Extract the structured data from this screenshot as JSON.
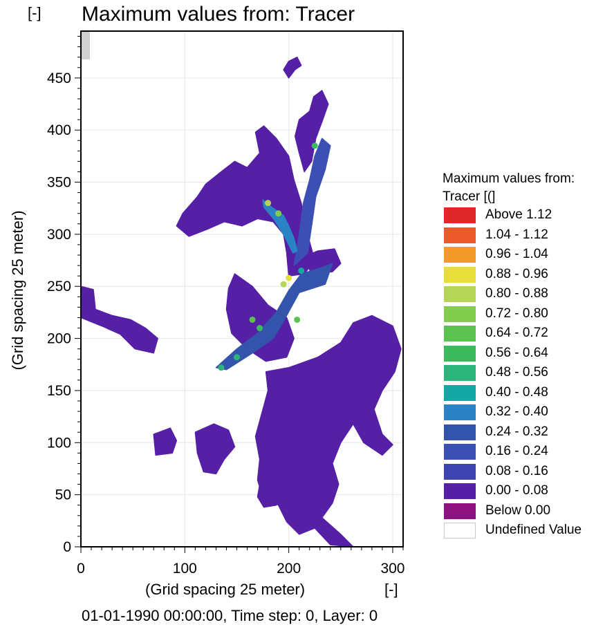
{
  "chart_data": {
    "type": "heatmap",
    "title": "Maximum values from: Tracer",
    "top_unit": "[-]",
    "xlabel": "(Grid spacing 25 meter)",
    "x_unit": "[-]",
    "ylabel": "(Grid spacing 25 meter)",
    "footer": "01-01-1990 00:00:00, Time step: 0, Layer: 0",
    "xlim": [
      0,
      310
    ],
    "ylim": [
      0,
      495
    ],
    "x_ticks": [
      0,
      100,
      200,
      300
    ],
    "y_ticks": [
      0,
      50,
      100,
      150,
      200,
      250,
      300,
      350,
      400,
      450
    ],
    "grid": true,
    "legend_position": "right",
    "legend": {
      "title": "Maximum values from: Tracer [(]",
      "entries": [
        {
          "label": "Above 1.12",
          "color": "#e0272a"
        },
        {
          "label": "1.04 - 1.12",
          "color": "#ec5a2b"
        },
        {
          "label": "0.96 - 1.04",
          "color": "#f29a2a"
        },
        {
          "label": "0.88 - 0.96",
          "color": "#e8de3a"
        },
        {
          "label": "0.80 - 0.88",
          "color": "#b4d557"
        },
        {
          "label": "0.72 - 0.80",
          "color": "#82cc4e"
        },
        {
          "label": "0.64 - 0.72",
          "color": "#5bc24f"
        },
        {
          "label": "0.56 - 0.64",
          "color": "#3dba5d"
        },
        {
          "label": "0.48 - 0.56",
          "color": "#2cb47a"
        },
        {
          "label": "0.40 - 0.48",
          "color": "#14a8a5"
        },
        {
          "label": "0.32 - 0.40",
          "color": "#2b82c4"
        },
        {
          "label": "0.24 - 0.32",
          "color": "#3454ac"
        },
        {
          "label": "0.16 - 0.24",
          "color": "#3c4fb4"
        },
        {
          "label": "0.08 - 0.16",
          "color": "#3f44b0"
        },
        {
          "label": "0.00 - 0.08",
          "color": "#5520a5"
        },
        {
          "label": "Below 0.00",
          "color": "#8e1280"
        },
        {
          "label": "Undefined Value",
          "color": "#ffffff"
        }
      ]
    },
    "regions": [
      {
        "name": "main-body",
        "color": "#5520a5",
        "points": [
          [
            200,
            260
          ],
          [
            215,
            262
          ],
          [
            225,
            275
          ],
          [
            218,
            300
          ],
          [
            212,
            330
          ],
          [
            205,
            352
          ],
          [
            200,
            375
          ],
          [
            188,
            392
          ],
          [
            176,
            404
          ],
          [
            168,
            398
          ],
          [
            172,
            378
          ],
          [
            160,
            364
          ],
          [
            148,
            370
          ],
          [
            135,
            360
          ],
          [
            120,
            348
          ],
          [
            112,
            336
          ],
          [
            98,
            320
          ],
          [
            92,
            308
          ],
          [
            104,
            298
          ],
          [
            122,
            305
          ],
          [
            138,
            312
          ],
          [
            155,
            308
          ],
          [
            170,
            315
          ],
          [
            185,
            312
          ],
          [
            195,
            300
          ],
          [
            198,
            282
          ]
        ]
      },
      {
        "name": "upper-right-lobe",
        "color": "#5520a5",
        "points": [
          [
            215,
            360
          ],
          [
            222,
            370
          ],
          [
            226,
            392
          ],
          [
            232,
            408
          ],
          [
            238,
            425
          ],
          [
            232,
            438
          ],
          [
            224,
            432
          ],
          [
            220,
            418
          ],
          [
            210,
            410
          ],
          [
            206,
            394
          ],
          [
            210,
            378
          ]
        ]
      },
      {
        "name": "top-fragment",
        "color": "#5520a5",
        "points": [
          [
            200,
            450
          ],
          [
            206,
            458
          ],
          [
            212,
            462
          ],
          [
            208,
            470
          ],
          [
            200,
            466
          ],
          [
            195,
            458
          ]
        ]
      },
      {
        "name": "right-mid-blob",
        "color": "#5520a5",
        "points": [
          [
            222,
            262
          ],
          [
            242,
            264
          ],
          [
            250,
            272
          ],
          [
            244,
            286
          ],
          [
            228,
            284
          ],
          [
            214,
            278
          ]
        ]
      },
      {
        "name": "middle-blob",
        "color": "#5520a5",
        "points": [
          [
            148,
            262
          ],
          [
            165,
            250
          ],
          [
            180,
            232
          ],
          [
            198,
            220
          ],
          [
            205,
            200
          ],
          [
            198,
            182
          ],
          [
            178,
            178
          ],
          [
            160,
            190
          ],
          [
            145,
            205
          ],
          [
            140,
            228
          ],
          [
            142,
            248
          ]
        ]
      },
      {
        "name": "west-arm",
        "color": "#5520a5",
        "points": [
          [
            0,
            250
          ],
          [
            12,
            247
          ],
          [
            14,
            228
          ],
          [
            30,
            222
          ],
          [
            48,
            218
          ],
          [
            62,
            210
          ],
          [
            74,
            200
          ],
          [
            70,
            186
          ],
          [
            52,
            190
          ],
          [
            38,
            204
          ],
          [
            20,
            212
          ],
          [
            0,
            220
          ]
        ]
      },
      {
        "name": "south-large",
        "color": "#5520a5",
        "points": [
          [
            178,
            168
          ],
          [
            200,
            172
          ],
          [
            228,
            182
          ],
          [
            250,
            196
          ],
          [
            262,
            215
          ],
          [
            280,
            222
          ],
          [
            300,
            212
          ],
          [
            308,
            190
          ],
          [
            302,
            168
          ],
          [
            290,
            150
          ],
          [
            282,
            132
          ],
          [
            290,
            108
          ],
          [
            300,
            98
          ],
          [
            290,
            88
          ],
          [
            272,
            100
          ],
          [
            262,
            118
          ],
          [
            250,
            100
          ],
          [
            242,
            80
          ],
          [
            248,
            60
          ],
          [
            242,
            42
          ],
          [
            232,
            28
          ],
          [
            250,
            12
          ],
          [
            262,
            0
          ],
          [
            240,
            2
          ],
          [
            225,
            18
          ],
          [
            210,
            12
          ],
          [
            198,
            24
          ],
          [
            190,
            40
          ],
          [
            175,
            48
          ],
          [
            170,
            64
          ],
          [
            172,
            84
          ],
          [
            168,
            106
          ],
          [
            174,
            128
          ],
          [
            180,
            150
          ]
        ]
      },
      {
        "name": "left-south-patch",
        "color": "#5520a5",
        "points": [
          [
            110,
            110
          ],
          [
            128,
            118
          ],
          [
            142,
            112
          ],
          [
            148,
            96
          ],
          [
            138,
            84
          ],
          [
            130,
            70
          ],
          [
            118,
            72
          ],
          [
            112,
            90
          ]
        ]
      },
      {
        "name": "small-west-patch",
        "color": "#5520a5",
        "points": [
          [
            70,
            108
          ],
          [
            86,
            114
          ],
          [
            92,
            102
          ],
          [
            88,
            90
          ],
          [
            72,
            88
          ]
        ]
      },
      {
        "name": "south-small-patch",
        "color": "#5520a5",
        "points": [
          [
            172,
            60
          ],
          [
            188,
            66
          ],
          [
            194,
            52
          ],
          [
            188,
            40
          ],
          [
            176,
            38
          ],
          [
            170,
            48
          ]
        ]
      }
    ],
    "plume": [
      {
        "name": "plume-low",
        "color": "#3454ac",
        "points": [
          [
            130,
            172
          ],
          [
            150,
            190
          ],
          [
            170,
            205
          ],
          [
            188,
            225
          ],
          [
            200,
            246
          ],
          [
            212,
            262
          ],
          [
            232,
            268
          ],
          [
            242,
            272
          ],
          [
            235,
            252
          ],
          [
            210,
            244
          ],
          [
            198,
            222
          ],
          [
            185,
            200
          ],
          [
            165,
            186
          ],
          [
            140,
            170
          ]
        ]
      },
      {
        "name": "plume-upper",
        "color": "#3c4fb4",
        "points": [
          [
            205,
            270
          ],
          [
            210,
            300
          ],
          [
            214,
            330
          ],
          [
            220,
            352
          ],
          [
            225,
            375
          ],
          [
            232,
            392
          ],
          [
            240,
            385
          ],
          [
            235,
            362
          ],
          [
            226,
            336
          ],
          [
            222,
            308
          ],
          [
            218,
            282
          ]
        ]
      },
      {
        "name": "plume-branch",
        "color": "#2b82c4",
        "points": [
          [
            175,
            333
          ],
          [
            185,
            325
          ],
          [
            195,
            318
          ],
          [
            200,
            308
          ],
          [
            205,
            296
          ],
          [
            208,
            284
          ],
          [
            204,
            282
          ],
          [
            196,
            298
          ],
          [
            186,
            314
          ],
          [
            176,
            326
          ]
        ]
      }
    ],
    "hotspots": [
      {
        "x": 180,
        "y": 330,
        "value": 0.85
      },
      {
        "x": 190,
        "y": 320,
        "value": 0.75
      },
      {
        "x": 200,
        "y": 258,
        "value": 0.9
      },
      {
        "x": 195,
        "y": 252,
        "value": 0.82
      },
      {
        "x": 225,
        "y": 385,
        "value": 0.6
      },
      {
        "x": 165,
        "y": 218,
        "value": 0.7
      },
      {
        "x": 172,
        "y": 210,
        "value": 0.6
      },
      {
        "x": 135,
        "y": 172,
        "value": 0.55
      },
      {
        "x": 150,
        "y": 182,
        "value": 0.5
      },
      {
        "x": 208,
        "y": 218,
        "value": 0.65
      },
      {
        "x": 212,
        "y": 265,
        "value": 0.45
      }
    ]
  }
}
